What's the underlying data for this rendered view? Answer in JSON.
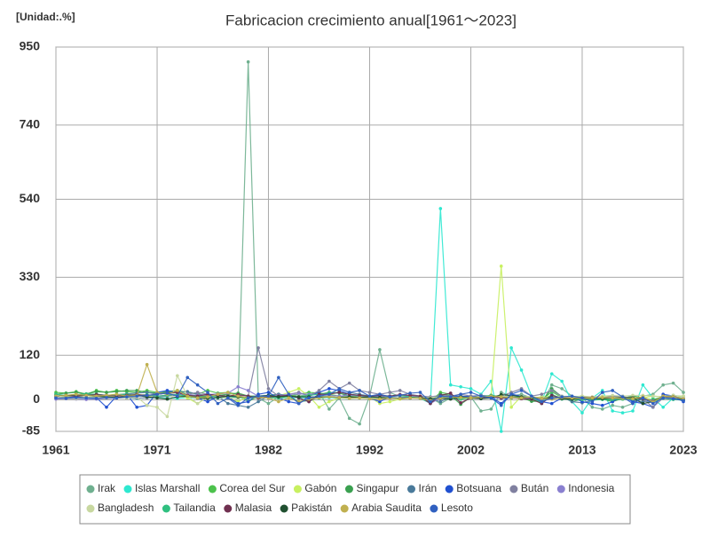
{
  "chart_data": {
    "type": "line",
    "title": "Fabricacion crecimiento anual[1961～2023]",
    "unit": "[Unidad:.%]",
    "x": [
      1961,
      1962,
      1963,
      1964,
      1965,
      1966,
      1967,
      1968,
      1969,
      1970,
      1971,
      1972,
      1973,
      1974,
      1975,
      1976,
      1977,
      1978,
      1979,
      1980,
      1981,
      1982,
      1983,
      1984,
      1985,
      1986,
      1987,
      1988,
      1989,
      1990,
      1991,
      1992,
      1993,
      1994,
      1995,
      1996,
      1997,
      1998,
      1999,
      2000,
      2001,
      2002,
      2003,
      2004,
      2005,
      2006,
      2007,
      2008,
      2009,
      2010,
      2011,
      2012,
      2013,
      2014,
      2015,
      2016,
      2017,
      2018,
      2019,
      2020,
      2021,
      2022,
      2023
    ],
    "xlim": [
      1961,
      2023
    ],
    "xticks": [
      1961,
      1971,
      1982,
      1992,
      2002,
      2013,
      2023
    ],
    "ylim": [
      -85,
      950
    ],
    "yticks": [
      -85,
      0,
      120,
      330,
      540,
      740,
      950
    ],
    "grid": true,
    "legend": "bottom",
    "series": [
      {
        "name": "Irak",
        "color": "#6fb08f",
        "values": [
          10,
          12,
          8,
          6,
          9,
          11,
          7,
          5,
          10,
          12,
          8,
          14,
          15,
          10,
          12,
          9,
          8,
          6,
          4,
          910,
          5,
          -10,
          8,
          12,
          10,
          15,
          20,
          -25,
          5,
          -50,
          -65,
          10,
          135,
          20,
          8,
          5,
          10,
          6,
          -10,
          5,
          3,
          8,
          -30,
          -25,
          20,
          10,
          15,
          5,
          -10,
          40,
          30,
          10,
          5,
          -20,
          -25,
          -15,
          -20,
          -10,
          10,
          15,
          40,
          45,
          20
        ]
      },
      {
        "name": "Islas Marshall",
        "color": "#2ee8d0",
        "values": [
          5,
          6,
          4,
          5,
          3,
          4,
          6,
          5,
          4,
          5,
          6,
          5,
          4,
          6,
          5,
          4,
          5,
          6,
          5,
          4,
          5,
          6,
          4,
          5,
          6,
          5,
          4,
          6,
          5,
          4,
          5,
          4,
          6,
          5,
          4,
          6,
          5,
          -10,
          515,
          40,
          35,
          30,
          15,
          50,
          -85,
          140,
          80,
          10,
          -5,
          70,
          50,
          -5,
          -35,
          5,
          25,
          -30,
          -35,
          -30,
          40,
          5,
          -20,
          5,
          10
        ]
      },
      {
        "name": "Corea del Sur",
        "color": "#4cc24c",
        "values": [
          20,
          18,
          22,
          15,
          25,
          20,
          25,
          22,
          20,
          25,
          20,
          22,
          25,
          20,
          15,
          25,
          18,
          20,
          15,
          -5,
          10,
          12,
          15,
          10,
          15,
          20,
          18,
          15,
          10,
          8,
          10,
          8,
          5,
          10,
          12,
          10,
          5,
          -5,
          20,
          15,
          2,
          8,
          6,
          12,
          8,
          10,
          7,
          -2,
          -1,
          22,
          6,
          1,
          2,
          3,
          2,
          -1,
          2,
          3,
          1,
          1,
          7,
          3,
          -1
        ]
      },
      {
        "name": "Gabón",
        "color": "#c8f060",
        "values": [
          5,
          8,
          10,
          6,
          4,
          8,
          10,
          12,
          15,
          10,
          8,
          10,
          12,
          5,
          -10,
          8,
          10,
          5,
          -5,
          10,
          5,
          8,
          10,
          20,
          30,
          10,
          -20,
          -5,
          5,
          10,
          5,
          8,
          -10,
          -5,
          2,
          5,
          8,
          -5,
          10,
          5,
          8,
          10,
          5,
          12,
          360,
          -20,
          10,
          5,
          8,
          10,
          5,
          8,
          10,
          5,
          8,
          10,
          5,
          8,
          5,
          10,
          8,
          5,
          10
        ]
      },
      {
        "name": "Singapur",
        "color": "#3aa050",
        "values": [
          15,
          18,
          20,
          16,
          22,
          20,
          22,
          25,
          25,
          20,
          18,
          20,
          22,
          15,
          8,
          10,
          12,
          15,
          18,
          10,
          10,
          8,
          5,
          10,
          -5,
          -2,
          15,
          20,
          18,
          10,
          12,
          10,
          8,
          10,
          12,
          8,
          5,
          -5,
          15,
          12,
          -12,
          8,
          5,
          12,
          8,
          10,
          6,
          -4,
          -4,
          30,
          8,
          -5,
          2,
          3,
          2,
          -5,
          4,
          10,
          6,
          -2,
          8,
          12,
          -1
        ]
      },
      {
        "name": "Irán",
        "color": "#4a7a9a",
        "values": [
          10,
          12,
          10,
          12,
          15,
          12,
          14,
          16,
          18,
          20,
          15,
          18,
          20,
          22,
          15,
          12,
          10,
          -10,
          -15,
          -20,
          -5,
          10,
          15,
          12,
          5,
          -5,
          10,
          8,
          5,
          20,
          15,
          10,
          5,
          8,
          10,
          12,
          5,
          2,
          -5,
          8,
          10,
          8,
          12,
          10,
          8,
          12,
          10,
          6,
          2,
          5,
          8,
          -5,
          -8,
          -2,
          5,
          3,
          6,
          -2,
          -5,
          -3,
          5,
          6,
          3
        ]
      },
      {
        "name": "Botsuana",
        "color": "#2050d0",
        "values": [
          5,
          6,
          8,
          5,
          6,
          -20,
          10,
          15,
          -20,
          -15,
          20,
          25,
          20,
          10,
          5,
          -5,
          10,
          8,
          -10,
          -5,
          15,
          20,
          5,
          -5,
          -10,
          10,
          20,
          30,
          25,
          15,
          10,
          5,
          -5,
          8,
          10,
          5,
          8,
          -5,
          5,
          10,
          8,
          10,
          5,
          8,
          -10,
          15,
          10,
          5,
          -5,
          -10,
          5,
          8,
          -5,
          -10,
          -15,
          -5,
          10,
          -5,
          -10,
          -20,
          15,
          10,
          -5
        ]
      },
      {
        "name": "Bután",
        "color": "#8080a0",
        "values": [
          5,
          5,
          5,
          5,
          5,
          5,
          5,
          5,
          5,
          5,
          8,
          10,
          12,
          15,
          20,
          15,
          10,
          8,
          12,
          10,
          140,
          30,
          10,
          15,
          20,
          10,
          25,
          50,
          30,
          45,
          25,
          20,
          15,
          20,
          25,
          15,
          10,
          8,
          12,
          10,
          15,
          10,
          12,
          8,
          10,
          20,
          30,
          10,
          15,
          25,
          10,
          5,
          8,
          3,
          5,
          10,
          8,
          5,
          3,
          -20,
          5,
          10,
          3
        ]
      },
      {
        "name": "Indonesia",
        "color": "#8a80d0",
        "values": [
          2,
          3,
          2,
          1,
          2,
          3,
          5,
          8,
          10,
          12,
          10,
          12,
          14,
          15,
          12,
          14,
          16,
          18,
          35,
          25,
          10,
          8,
          12,
          14,
          16,
          15,
          14,
          12,
          10,
          12,
          11,
          10,
          9,
          10,
          12,
          10,
          5,
          -10,
          5,
          6,
          5,
          4,
          5,
          6,
          4,
          5,
          5,
          4,
          2,
          5,
          6,
          5,
          5,
          4,
          5,
          4,
          4,
          4,
          4,
          -3,
          4,
          5,
          5
        ]
      },
      {
        "name": "Bangladesh",
        "color": "#c8d8a0",
        "values": [
          5,
          4,
          3,
          6,
          5,
          4,
          6,
          5,
          8,
          -15,
          -20,
          -45,
          65,
          10,
          -10,
          8,
          6,
          5,
          4,
          8,
          5,
          6,
          4,
          8,
          10,
          6,
          8,
          10,
          6,
          5,
          8,
          6,
          5,
          8,
          10,
          8,
          6,
          5,
          8,
          6,
          5,
          6,
          7,
          8,
          10,
          8,
          10,
          8,
          6,
          8,
          10,
          8,
          10,
          8,
          10,
          12,
          10,
          12,
          12,
          10,
          8,
          12,
          10
        ]
      },
      {
        "name": "Tailandia",
        "color": "#30c080",
        "values": [
          15,
          12,
          14,
          16,
          15,
          12,
          14,
          15,
          12,
          14,
          10,
          12,
          14,
          10,
          8,
          6,
          12,
          10,
          8,
          5,
          8,
          6,
          5,
          10,
          8,
          12,
          15,
          18,
          20,
          15,
          12,
          10,
          12,
          10,
          12,
          8,
          4,
          -8,
          10,
          5,
          2,
          5,
          8,
          12,
          6,
          5,
          8,
          6,
          -8,
          15,
          2,
          2,
          1,
          -1,
          1,
          1,
          2,
          2,
          4,
          -6,
          4,
          1,
          -1
        ]
      },
      {
        "name": "Malasia",
        "color": "#703050",
        "values": [
          10,
          12,
          10,
          12,
          14,
          12,
          10,
          12,
          14,
          12,
          15,
          18,
          20,
          12,
          10,
          15,
          12,
          10,
          14,
          10,
          5,
          8,
          10,
          12,
          5,
          -5,
          15,
          15,
          20,
          15,
          12,
          10,
          12,
          10,
          14,
          12,
          10,
          -10,
          12,
          18,
          -8,
          5,
          4,
          10,
          5,
          6,
          3,
          2,
          -10,
          12,
          4,
          4,
          5,
          6,
          5,
          5,
          4,
          5,
          3,
          -5,
          10,
          8,
          2
        ]
      },
      {
        "name": "Pakistán",
        "color": "#205030",
        "values": [
          10,
          12,
          14,
          12,
          10,
          8,
          6,
          10,
          12,
          8,
          5,
          2,
          8,
          10,
          5,
          4,
          6,
          10,
          8,
          6,
          10,
          12,
          8,
          10,
          8,
          8,
          7,
          8,
          6,
          8,
          6,
          8,
          6,
          5,
          4,
          5,
          5,
          3,
          4,
          2,
          8,
          5,
          3,
          5,
          14,
          12,
          8,
          6,
          4,
          6,
          3,
          2,
          5,
          4,
          3,
          5,
          6,
          5,
          -10,
          -5,
          10,
          8,
          2
        ]
      },
      {
        "name": "Arabia Saudita",
        "color": "#c0b050",
        "values": [
          10,
          12,
          15,
          12,
          10,
          12,
          15,
          10,
          12,
          95,
          20,
          15,
          25,
          10,
          5,
          8,
          15,
          20,
          10,
          5,
          8,
          5,
          -5,
          5,
          -5,
          2,
          5,
          8,
          6,
          4,
          5,
          3,
          2,
          4,
          3,
          5,
          4,
          -2,
          5,
          8,
          6,
          5,
          8,
          10,
          8,
          6,
          5,
          8,
          4,
          2,
          6,
          5,
          4,
          5,
          6,
          5,
          4,
          3,
          8,
          -6,
          10,
          8,
          3
        ]
      },
      {
        "name": "Lesoto",
        "color": "#3060c0",
        "values": [
          5,
          4,
          6,
          5,
          4,
          6,
          5,
          8,
          10,
          12,
          15,
          18,
          10,
          60,
          40,
          20,
          -10,
          5,
          -15,
          5,
          10,
          10,
          60,
          15,
          -10,
          5,
          10,
          15,
          30,
          20,
          25,
          10,
          15,
          8,
          12,
          18,
          20,
          -5,
          10,
          8,
          15,
          20,
          10,
          5,
          -15,
          15,
          25,
          10,
          -5,
          5,
          8,
          10,
          5,
          -5,
          20,
          25,
          8,
          -10,
          5,
          -10,
          5,
          3,
          -2
        ]
      }
    ]
  }
}
